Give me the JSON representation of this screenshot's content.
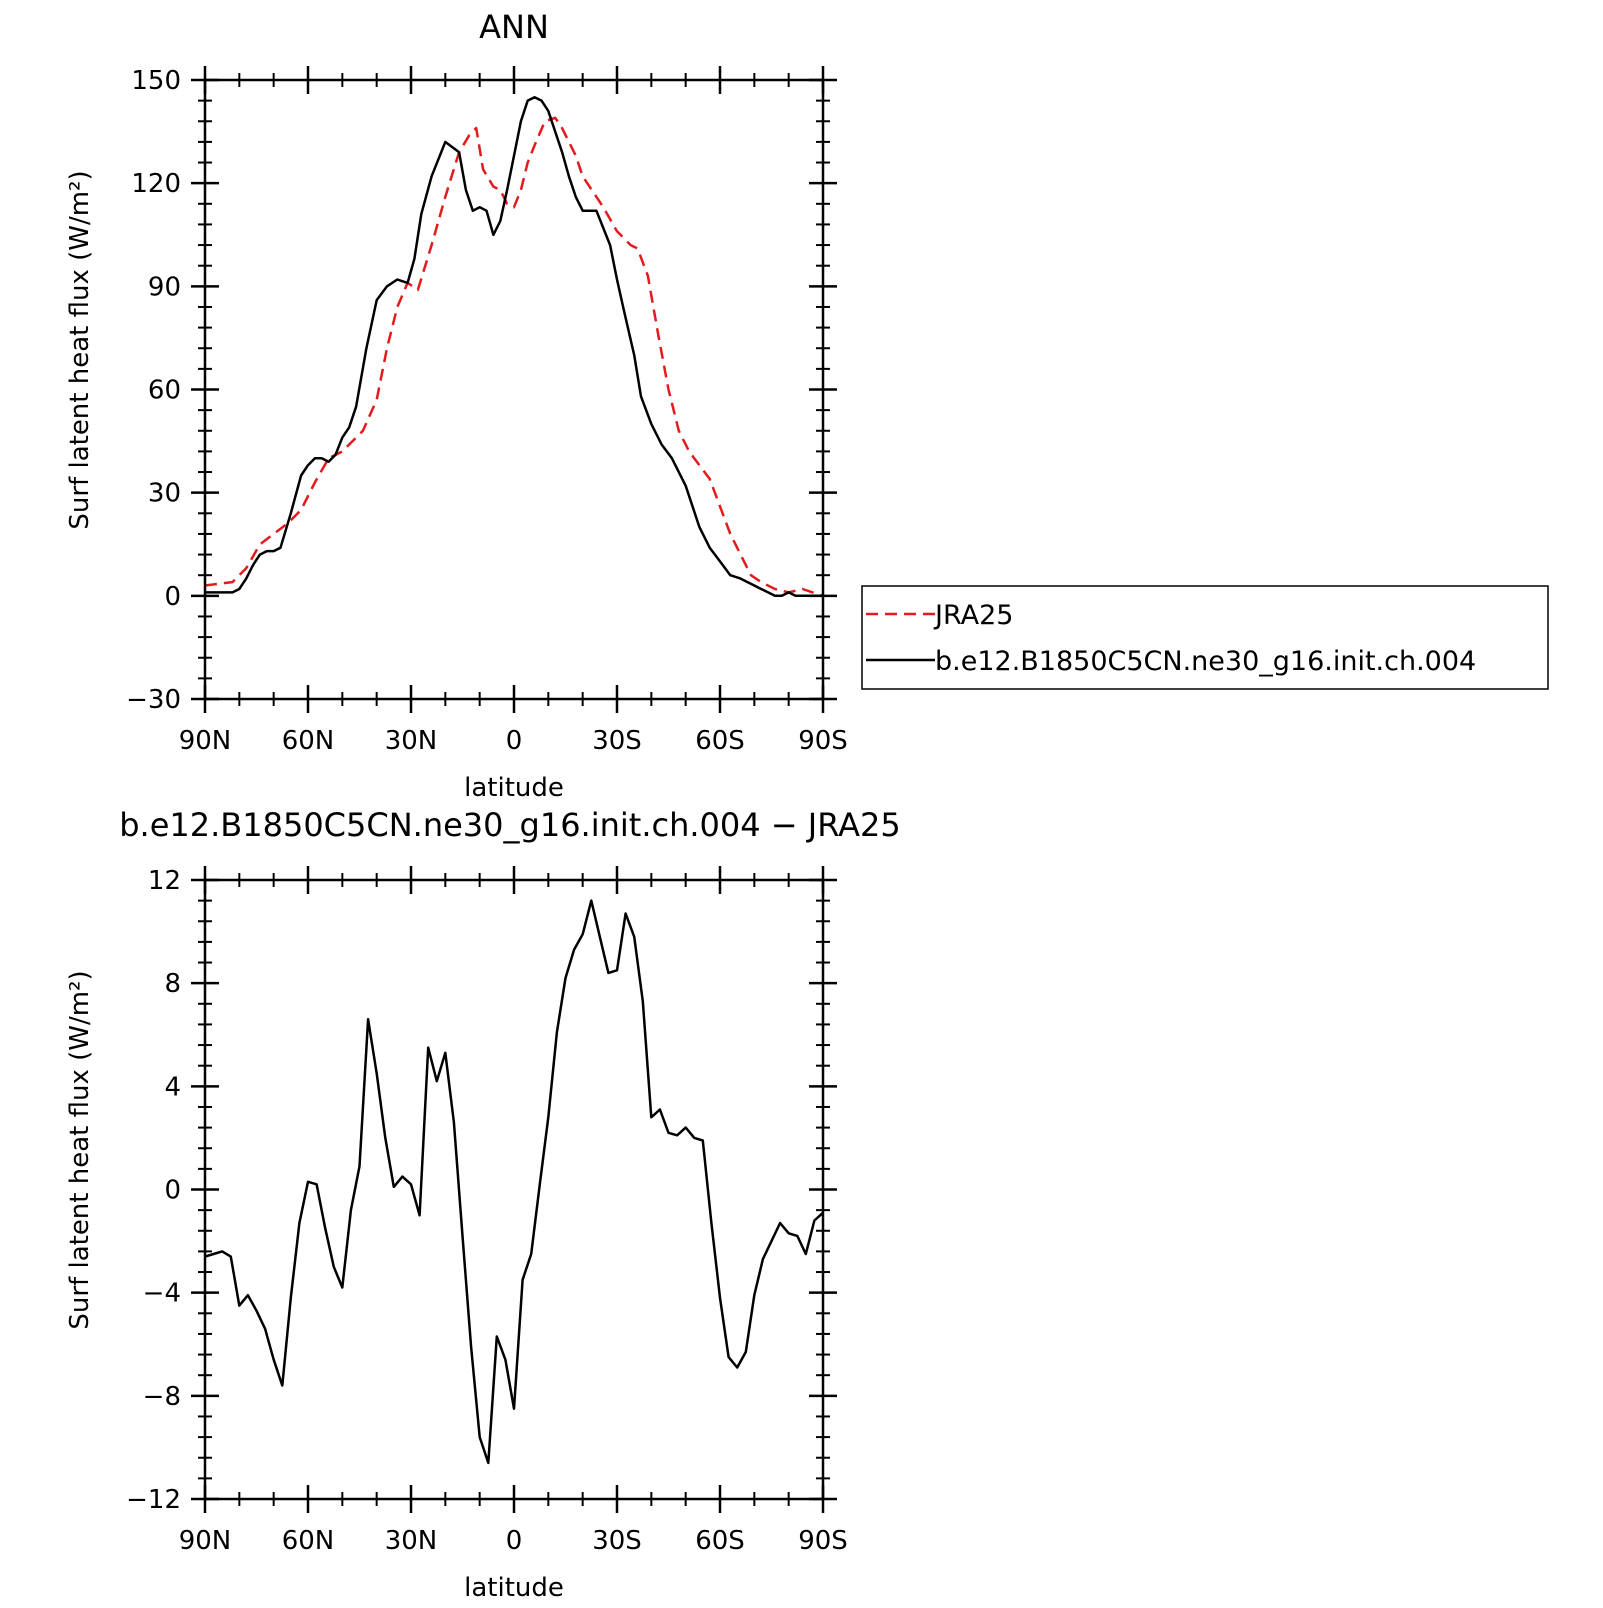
{
  "chart_data": [
    {
      "type": "line",
      "title": "ANN",
      "xlabel": "latitude",
      "ylabel": "Surf latent heat flux (W/m²)",
      "ylim": [
        -30,
        150
      ],
      "yticks": [
        -30,
        0,
        30,
        60,
        90,
        120,
        150
      ],
      "xlim": [
        90,
        -90
      ],
      "xticks": [
        90,
        60,
        30,
        0,
        -30,
        -60,
        -90
      ],
      "xtick_labels": [
        "90N",
        "60N",
        "30N",
        "0",
        "30S",
        "60S",
        "90S"
      ],
      "grid": false,
      "legend": {
        "placement": "right",
        "entries": [
          {
            "label": "JRA25",
            "color": "#e41a1c",
            "style": "dashed"
          },
          {
            "label": "b.e12.B1850C5CN.ne30_g16.init.ch.004",
            "color": "#000000",
            "style": "solid"
          }
        ]
      },
      "series": [
        {
          "name": "JRA25",
          "color": "#e41a1c",
          "style": "dashed",
          "x": [
            90,
            82,
            78,
            74,
            70,
            66,
            62,
            58,
            54,
            50,
            47,
            44,
            40,
            37,
            34,
            31,
            28,
            24,
            20,
            16,
            13,
            11,
            9,
            6,
            4,
            2,
            0,
            -2,
            -4,
            -6,
            -9,
            -12,
            -14,
            -16,
            -18,
            -20,
            -22,
            -26,
            -30,
            -34,
            -36,
            -39,
            -42,
            -45,
            -48,
            -51,
            -54,
            -57,
            -60,
            -63,
            -66,
            -69,
            -72,
            -76,
            -80,
            -84,
            -87,
            -90
          ],
          "y": [
            3,
            4,
            8,
            15,
            18,
            21,
            25,
            33,
            40,
            42,
            45,
            48,
            57,
            72,
            84,
            91,
            89,
            102,
            116,
            129,
            134,
            136,
            124,
            119,
            118,
            114,
            113,
            118,
            126,
            131,
            138,
            139,
            136,
            132,
            128,
            122,
            119,
            113,
            106,
            102,
            101,
            93,
            76,
            60,
            48,
            42,
            38,
            34,
            26,
            18,
            12,
            6,
            4,
            2,
            1,
            2,
            1,
            0
          ]
        },
        {
          "name": "b.e12.B1850C5CN.ne30_g16.init.ch.004",
          "color": "#000000",
          "style": "solid",
          "x": [
            90,
            82,
            80,
            78,
            76,
            74,
            72,
            70,
            68,
            65,
            62,
            60,
            58,
            56,
            54,
            52,
            50,
            48,
            46,
            43,
            40,
            37,
            34,
            31,
            29,
            27,
            24,
            20,
            16,
            14,
            12,
            10,
            8,
            6,
            4,
            2,
            0,
            -2,
            -4,
            -6,
            -8,
            -10,
            -12,
            -14,
            -16,
            -18,
            -20,
            -24,
            -28,
            -30,
            -32,
            -35,
            -37,
            -40,
            -43,
            -46,
            -50,
            -54,
            -57,
            -60,
            -63,
            -66,
            -68,
            -70,
            -72,
            -74,
            -76,
            -78,
            -80,
            -82,
            -84,
            -86,
            -88,
            -90
          ],
          "y": [
            1,
            1,
            2,
            5,
            9,
            12,
            13,
            13,
            14,
            24,
            35,
            38,
            40,
            40,
            39,
            41,
            46,
            49,
            55,
            72,
            86,
            90,
            92,
            91,
            98,
            111,
            122,
            132,
            129,
            118,
            112,
            113,
            112,
            105,
            109,
            118,
            128,
            138,
            144,
            145,
            144,
            141,
            135,
            129,
            122,
            116,
            112,
            112,
            102,
            92,
            83,
            70,
            58,
            50,
            44,
            40,
            32,
            20,
            14,
            10,
            6,
            5,
            4,
            3,
            2,
            1,
            0,
            0,
            1,
            0,
            0,
            0,
            0,
            0
          ]
        }
      ]
    },
    {
      "type": "line",
      "title": "b.e12.B1850C5CN.ne30_g16.init.ch.004 − JRA25",
      "xlabel": "latitude",
      "ylabel": "Surf latent heat flux (W/m²)",
      "ylim": [
        -12,
        12
      ],
      "yticks": [
        -12,
        -8,
        -4,
        0,
        4,
        8,
        12
      ],
      "xlim": [
        90,
        -90
      ],
      "xticks": [
        90,
        60,
        30,
        0,
        -30,
        -60,
        -90
      ],
      "xtick_labels": [
        "90N",
        "60N",
        "30N",
        "0",
        "30S",
        "60S",
        "90S"
      ],
      "grid": false,
      "series": [
        {
          "color": "#000000",
          "style": "solid",
          "x": [
            90,
            87.5,
            85,
            82.5,
            80,
            77.5,
            75,
            72.5,
            70,
            67.5,
            65,
            62.5,
            60,
            57.5,
            55,
            52.5,
            50,
            47.5,
            45,
            42.5,
            40,
            37.5,
            35,
            32.5,
            30,
            27.5,
            25,
            22.5,
            20,
            17.5,
            15,
            12.5,
            10,
            7.5,
            5,
            2.5,
            0,
            -2.5,
            -5,
            -7.5,
            -10,
            -12.5,
            -15,
            -17.5,
            -20,
            -22.5,
            -25,
            -27.5,
            -30,
            -32.5,
            -35,
            -37.5,
            -40,
            -42.5,
            -45,
            -47.5,
            -50,
            -52.5,
            -55,
            -57.5,
            -60,
            -62.5,
            -65,
            -67.5,
            -70,
            -72.5,
            -75,
            -77.5,
            -80,
            -82.5,
            -85,
            -87.5,
            -90
          ],
          "y": [
            -2.6,
            -2.5,
            -2.4,
            -2.6,
            -4.5,
            -4.1,
            -4.7,
            -5.4,
            -6.6,
            -7.6,
            -4.2,
            -1.3,
            0.3,
            0.2,
            -1.5,
            -3,
            -3.8,
            -0.8,
            0.9,
            6.6,
            4.5,
            2,
            0.1,
            0.5,
            0.2,
            -1,
            5.5,
            4.2,
            5.3,
            2.6,
            -1.8,
            -6.1,
            -9.6,
            -10.6,
            -5.7,
            -6.6,
            -8.5,
            -3.5,
            -2.5,
            0.2,
            2.8,
            6.1,
            8.2,
            9.3,
            9.9,
            11.2,
            9.8,
            8.4,
            8.5,
            10.7,
            9.8,
            7.3,
            2.8,
            3.1,
            2.2,
            2.1,
            2.4,
            2.0,
            1.9,
            -1.3,
            -4.2,
            -6.5,
            -6.9,
            -6.3,
            -4.1,
            -2.7,
            -2.0,
            -1.3,
            -1.7,
            -1.8,
            -2.5,
            -1.2,
            -0.9
          ]
        }
      ]
    }
  ]
}
